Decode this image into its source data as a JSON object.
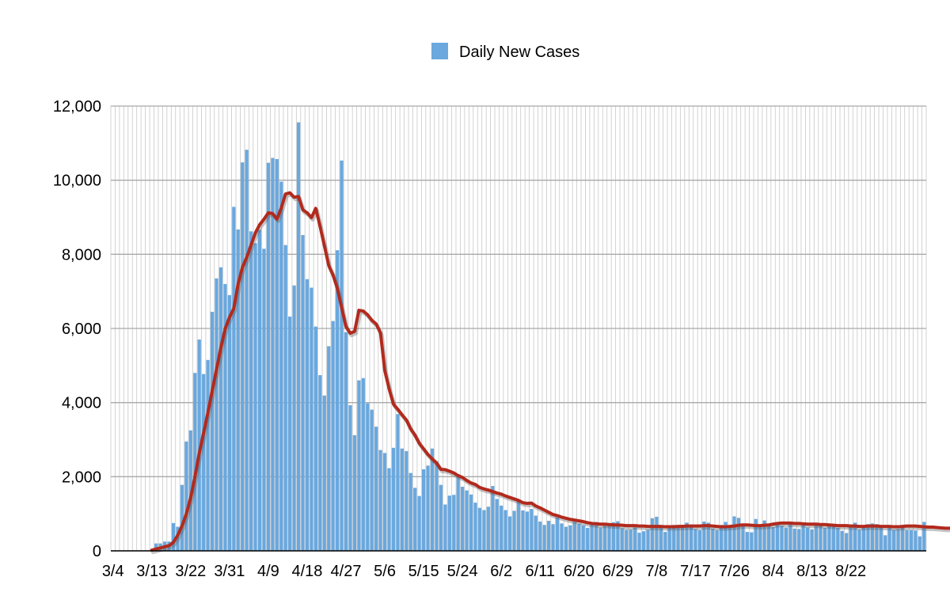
{
  "chart_data": {
    "type": "bar",
    "legend": {
      "placement": "top-center",
      "entries": [
        "Daily New Cases"
      ]
    },
    "series": [
      {
        "name": "Daily New Cases",
        "color": "#6aa8de",
        "values": [
          0,
          0,
          0,
          0,
          0,
          0,
          0,
          0,
          0,
          20,
          200,
          200,
          250,
          250,
          750,
          650,
          1780,
          2950,
          3250,
          4800,
          5700,
          4770,
          5150,
          6450,
          7350,
          7650,
          7200,
          6900,
          9280,
          8670,
          10480,
          10820,
          8620,
          8300,
          8660,
          8150,
          10470,
          10600,
          10570,
          9960,
          8250,
          6320,
          7160,
          11560,
          8520,
          7330,
          7100,
          6050,
          4740,
          4190,
          5520,
          6200,
          8110,
          10530,
          5900,
          3930,
          3120,
          4600,
          4660,
          3980,
          3810,
          3350,
          2720,
          2640,
          2230,
          2780,
          3690,
          2760,
          2690,
          2100,
          1700,
          1480,
          2200,
          2300,
          2760,
          2420,
          1780,
          1250,
          1490,
          1510,
          2070,
          1730,
          1630,
          1520,
          1300,
          1160,
          1100,
          1190,
          1750,
          1400,
          1220,
          1100,
          930,
          1080,
          1360,
          1090,
          1060,
          1130,
          950,
          790,
          700,
          810,
          720,
          900,
          740,
          650,
          690,
          780,
          730,
          690,
          620,
          730,
          780,
          630,
          680,
          720,
          770,
          800,
          610,
          570,
          580,
          630,
          490,
          530,
          570,
          880,
          920,
          670,
          510,
          610,
          700,
          650,
          700,
          760,
          650,
          590,
          560,
          790,
          760,
          600,
          560,
          700,
          780,
          670,
          930,
          890,
          680,
          510,
          500,
          860,
          660,
          820,
          710,
          640,
          730,
          680,
          630,
          760,
          600,
          590,
          760,
          630,
          580,
          740,
          740,
          620,
          690,
          710,
          620,
          540,
          480,
          690,
          760,
          570,
          630,
          720,
          740,
          720,
          690,
          420,
          640,
          570,
          590,
          620,
          560,
          560,
          550,
          390,
          780
        ]
      },
      {
        "name": "",
        "type": "line",
        "color": "#b22a1d",
        "values": [
          null,
          null,
          null,
          null,
          null,
          null,
          null,
          null,
          null,
          20,
          50,
          80,
          110,
          140,
          230,
          420,
          670,
          1000,
          1430,
          2000,
          2640,
          3180,
          3730,
          4320,
          4900,
          5480,
          5990,
          6300,
          6540,
          7200,
          7650,
          7920,
          8250,
          8580,
          8800,
          8950,
          9120,
          9100,
          8950,
          9250,
          9630,
          9660,
          9540,
          9560,
          9200,
          9120,
          8990,
          9240,
          8750,
          8230,
          7700,
          7440,
          7080,
          6560,
          6050,
          5870,
          5920,
          6490,
          6470,
          6370,
          6220,
          6120,
          5880,
          4860,
          4370,
          3960,
          3820,
          3670,
          3530,
          3290,
          3120,
          2900,
          2750,
          2600,
          2480,
          2370,
          2200,
          2190,
          2150,
          2100,
          2030,
          1980,
          1900,
          1830,
          1790,
          1710,
          1670,
          1640,
          1600,
          1560,
          1530,
          1480,
          1440,
          1400,
          1360,
          1300,
          1280,
          1290,
          1210,
          1160,
          1100,
          1040,
          980,
          950,
          910,
          880,
          850,
          830,
          810,
          790,
          760,
          740,
          730,
          720,
          720,
          710,
          700,
          700,
          690,
          680,
          680,
          680,
          670,
          670,
          660,
          660,
          660,
          660,
          650,
          650,
          650,
          660,
          660,
          670,
          670,
          670,
          670,
          680,
          680,
          670,
          660,
          650,
          650,
          660,
          670,
          690,
          700,
          700,
          690,
          680,
          680,
          690,
          700,
          720,
          740,
          750,
          750,
          750,
          740,
          740,
          730,
          720,
          720,
          720,
          710,
          710,
          700,
          690,
          680,
          680,
          680,
          670,
          670,
          660,
          660,
          670,
          670,
          670,
          660,
          660,
          660,
          650,
          650,
          660,
          670,
          670,
          670,
          660,
          650,
          640,
          640,
          630,
          620,
          610,
          610,
          610,
          610
        ]
      }
    ],
    "xlabel": "",
    "ylabel": "",
    "ylim": [
      0,
      12000
    ],
    "yticks": [
      0,
      2000,
      4000,
      6000,
      8000,
      10000,
      12000
    ],
    "ytick_labels": [
      "0",
      "2,000",
      "4,000",
      "6,000",
      "8,000",
      "10,000",
      "12,000"
    ],
    "xtick_labels": [
      "3/4",
      "3/13",
      "3/22",
      "3/31",
      "4/9",
      "4/18",
      "4/27",
      "5/6",
      "5/15",
      "5/24",
      "6/2",
      "6/11",
      "6/20",
      "6/29",
      "7/8",
      "7/17",
      "7/26",
      "8/4",
      "8/13",
      "8/22"
    ],
    "xtick_every_days": 9,
    "grid": {
      "horizontal": true,
      "vertical": true
    }
  }
}
